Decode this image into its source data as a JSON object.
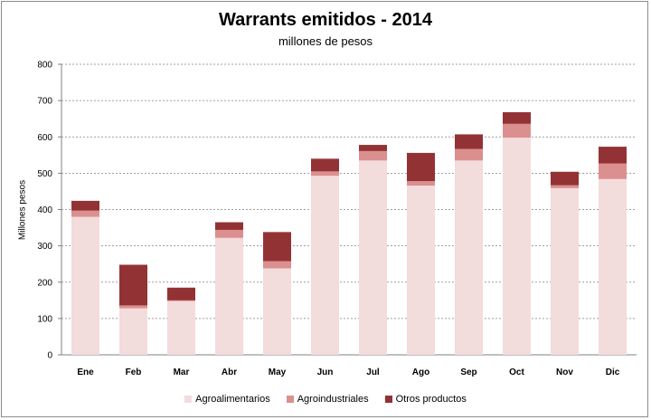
{
  "chart_data": {
    "type": "bar",
    "stacked": true,
    "title": "Warrants emitidos  - 2014",
    "subtitle": "millones de pesos",
    "xlabel": "",
    "ylabel": "Millones pesos",
    "ylim": [
      0,
      800
    ],
    "yticks": [
      0,
      100,
      200,
      300,
      400,
      500,
      600,
      700,
      800
    ],
    "grid": true,
    "legend_position": "bottom",
    "categories": [
      "Ene",
      "Feb",
      "Mar",
      "Abr",
      "May",
      "Jun",
      "Jul",
      "Ago",
      "Sep",
      "Oct",
      "Nov",
      "Dic"
    ],
    "series": [
      {
        "name": "Agroalimentarios",
        "color": "#f3dcdc",
        "values": [
          380,
          128,
          148,
          322,
          238,
          493,
          535,
          466,
          535,
          598,
          459,
          484
        ]
      },
      {
        "name": "Agroindustriales",
        "color": "#dc8f8f",
        "values": [
          17,
          8,
          2,
          22,
          20,
          12,
          26,
          12,
          32,
          38,
          8,
          43
        ]
      },
      {
        "name": "Otros productos",
        "color": "#933234",
        "values": [
          27,
          112,
          35,
          21,
          80,
          35,
          17,
          78,
          40,
          32,
          37,
          46
        ]
      }
    ],
    "colors": {
      "grid": "#808080",
      "axis": "#808080"
    }
  }
}
